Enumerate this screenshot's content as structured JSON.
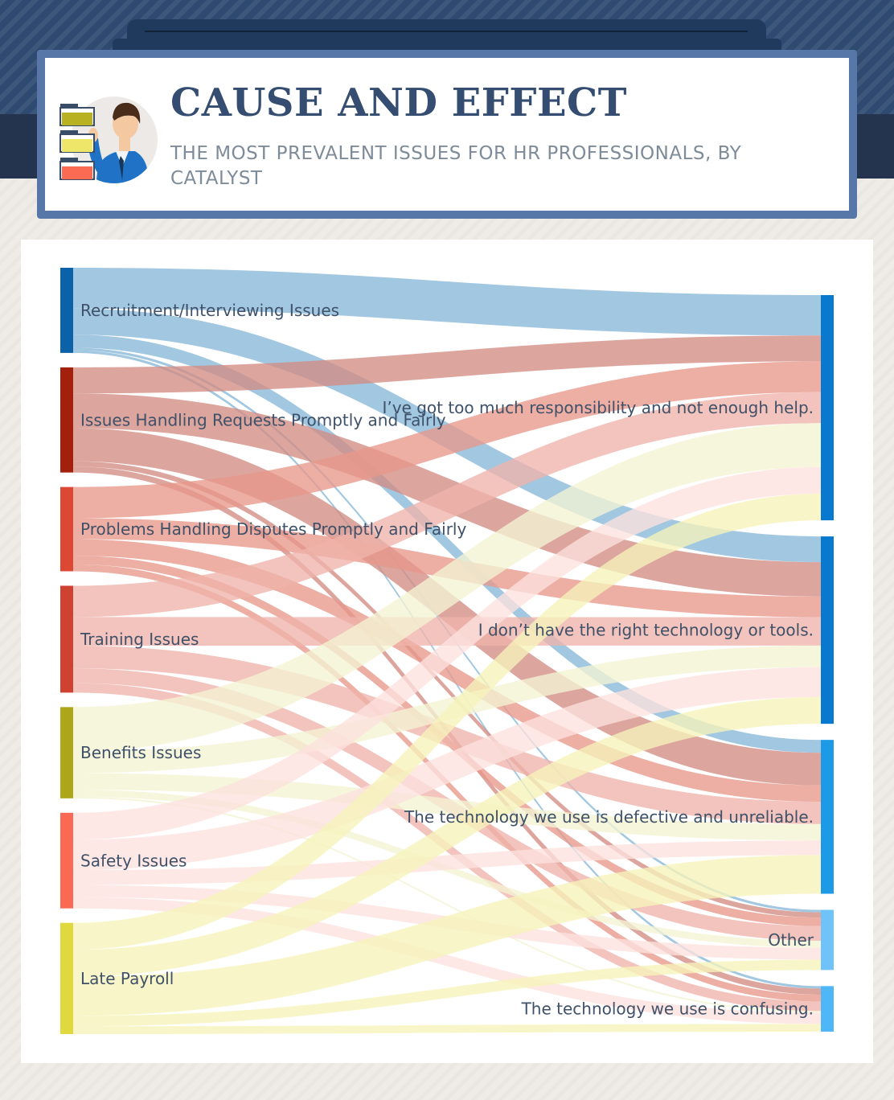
{
  "header": {
    "title": "CAUSE AND EFFECT",
    "subtitle": "THE MOST PREVALENT ISSUES FOR HR PROFESSIONALS, BY CATALYST"
  },
  "illustration": {
    "icon": "hr-professional-with-folders-icon"
  },
  "colors": {
    "causes": [
      "#0b62a8",
      "#a3200d",
      "#dd4834",
      "#cf4131",
      "#ada619",
      "#fa6953",
      "#dfd93f"
    ],
    "ribbons": [
      "#87b7d9",
      "#d28c83",
      "#e8978b",
      "#efb4ab",
      "#f4f3d4",
      "#fde2de",
      "#f6f3ba"
    ],
    "effects": [
      "#0879ce",
      "#0879ce",
      "#1d9ae6",
      "#6fc3f8",
      "#4fb6f7"
    ],
    "title": "#344d70",
    "subtitle": "#7e8b99"
  },
  "chart_data": {
    "type": "sankey",
    "sources": [
      "Recruitment/Interviewing Issues",
      "Issues Handling Requests Promptly and Fairly",
      "Problems Handling Disputes Promptly and Fairly",
      "Training Issues",
      "Benefits Issues",
      "Safety Issues",
      "Late Payroll"
    ],
    "targets": [
      "I’ve got too much responsibility and not enough help.",
      "I don’t have the right technology or tools.",
      "The technology we use is defective and unreliable.",
      "Other",
      "The technology we use is confusing."
    ],
    "flows": [
      {
        "source": 0,
        "values": [
          47,
          30,
          15,
          3,
          3
        ]
      },
      {
        "source": 1,
        "values": [
          30,
          40,
          38,
          6,
          7
        ]
      },
      {
        "source": 2,
        "values": [
          36,
          24,
          19,
          10,
          8
        ]
      },
      {
        "source": 3,
        "values": [
          36,
          33,
          26,
          17,
          11
        ]
      },
      {
        "source": 4,
        "values": [
          51,
          25,
          19,
          8,
          2
        ]
      },
      {
        "source": 5,
        "values": [
          31,
          35,
          17,
          14,
          13
        ]
      },
      {
        "source": 6,
        "values": [
          31,
          31,
          45,
          12,
          9
        ]
      }
    ]
  }
}
